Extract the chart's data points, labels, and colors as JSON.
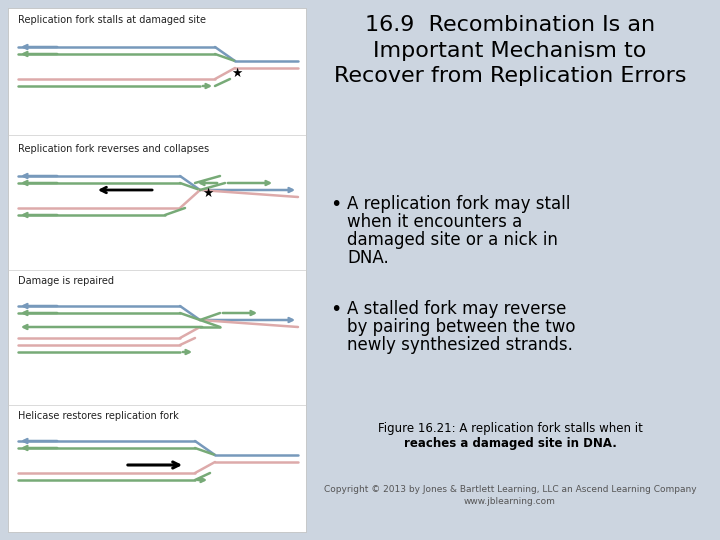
{
  "title": "16.9  Recombination Is an\nImportant Mechanism to\nRecover from Replication Errors",
  "b1_lines": [
    "A replication fork may stall",
    "when it encounters a",
    "damaged site or a nick in",
    "DNA."
  ],
  "b2_lines": [
    "A stalled fork may reverse",
    "by pairing between the two",
    "newly synthesized strands."
  ],
  "fig_caption_line1": "Figure 16.21: A replication fork stalls when it",
  "fig_caption_line2": "reaches a damaged site in DNA.",
  "copyright_line1": "Copyright © 2013 by Jones & Bartlett Learning, LLC an Ascend Learning Company",
  "copyright_line2": "www.jblearning.com",
  "bg_color": "#ccd5e0",
  "panel_bg": "#ffffff",
  "title_color": "#000000",
  "blue_strand": "#7799bb",
  "green_strand": "#77aa77",
  "pink_strand": "#ddaaaa",
  "label1": "Replication fork stalls at damaged site",
  "label2": "Replication fork reverses and collapses",
  "label3": "Damage is repaired",
  "label4": "Helicase restores replication fork"
}
